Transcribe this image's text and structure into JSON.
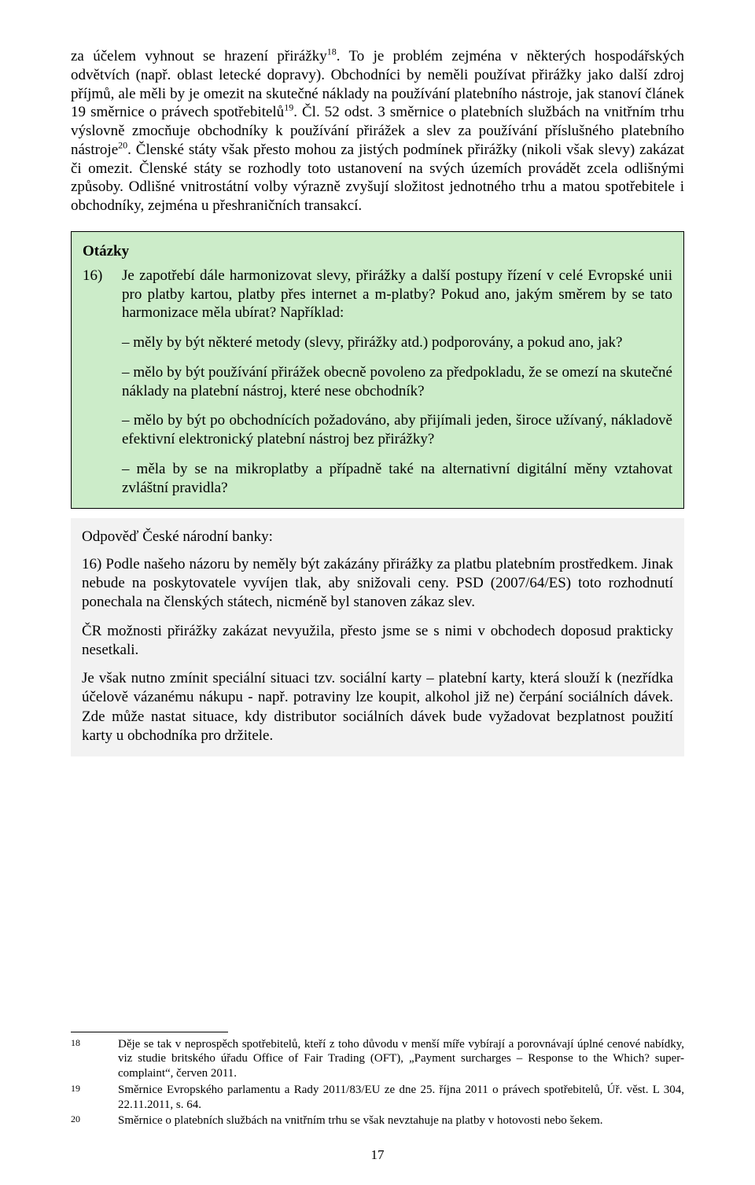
{
  "body": {
    "p1_a": "za účelem vyhnout se hrazení přirážky",
    "p1_sup1": "18",
    "p1_b": ". To je problém zejména v některých hospodářských odvětvích (např. oblast letecké dopravy). Obchodníci by neměli používat přirážky jako další zdroj příjmů, ale měli by je omezit na skutečné náklady na používání platebního nástroje, jak stanoví článek 19 směrnice o právech spotřebitelů",
    "p1_sup2": "19",
    "p1_c": ". Čl. 52 odst. 3 směrnice o platebních službách na vnitřním trhu výslovně zmocňuje obchodníky k používání přirážek a slev za používání příslušného platebního nástroje",
    "p1_sup3": "20",
    "p1_d": ". Členské státy však přesto mohou za jistých podmínek přirážky (nikoli však slevy) zakázat či omezit. Členské státy se rozhodly toto ustanovení na svých územích provádět zcela odlišnými způsoby. Odlišné vnitrostátní volby výrazně zvyšují složitost jednotného trhu a matou spotřebitele i obchodníky, zejména u přeshraničních transakcí."
  },
  "question": {
    "title": "Otázky",
    "num": "16)",
    "intro": "Je zapotřebí dále harmonizovat slevy, přirážky a další postupy řízení v celé Evropské unii pro platby kartou, platby přes internet a m-platby? Pokud ano, jakým směrem by se tato harmonizace měla ubírat? Například:",
    "sub1": "– měly by být některé metody (slevy, přirážky atd.) podporovány, a pokud ano, jak?",
    "sub2": "– mělo by být používání přirážek obecně povoleno za předpokladu, že se omezí na skutečné náklady na platební nástroj, které nese obchodník?",
    "sub3": "– mělo by být po obchodnících požadováno, aby přijímali jeden, široce užívaný, nákladově efektivní elektronický platební nástroj bez přirážky?",
    "sub4": "– měla by se na mikroplatby a případně také na alternativní digitální měny vztahovat zvláštní pravidla?"
  },
  "answer": {
    "head": "Odpověď České národní banky:",
    "p1": "16) Podle našeho názoru by neměly být zakázány přirážky za platbu platebním prostředkem. Jinak nebude na poskytovatele vyvíjen tlak, aby snižovali ceny. PSD (2007/64/ES) toto rozhodnutí ponechala na členských státech, nicméně byl stanoven zákaz slev.",
    "p2": "ČR možnosti přirážky zakázat nevyužila, přesto jsme se s nimi v obchodech doposud prakticky nesetkali.",
    "p3": "Je však nutno zmínit speciální situaci tzv. sociální karty – platební karty, která slouží k (nezřídka účelově vázanému nákupu - např. potraviny lze koupit, alkohol již ne) čerpání sociálních dávek. Zde může nastat situace, kdy distributor sociálních dávek bude vyžadovat bezplatnost použití karty u obchodníka pro držitele."
  },
  "footnotes": {
    "n1": "18",
    "t1": "Děje se tak v neprospěch spotřebitelů, kteří z toho důvodu v menší míře vybírají a porovnávají úplné cenové nabídky, viz studie britského úřadu Office of Fair Trading (OFT), „Payment surcharges – Response to the Which? super-complaint“, červen 2011.",
    "n2": "19",
    "t2": "Směrnice Evropského parlamentu a Rady 2011/83/EU ze dne 25. října 2011 o právech spotřebitelů, Úř. věst. L 304, 22.11.2011, s. 64.",
    "n3": "20",
    "t3": "Směrnice o platebních službách na vnitřním trhu se však nevztahuje na platby v hotovosti nebo šekem."
  },
  "page_number": "17",
  "colors": {
    "question_bg": "#ccecc9",
    "answer_bg": "#f2f2f2",
    "border": "#000000",
    "text": "#000000",
    "page_bg": "#ffffff"
  }
}
